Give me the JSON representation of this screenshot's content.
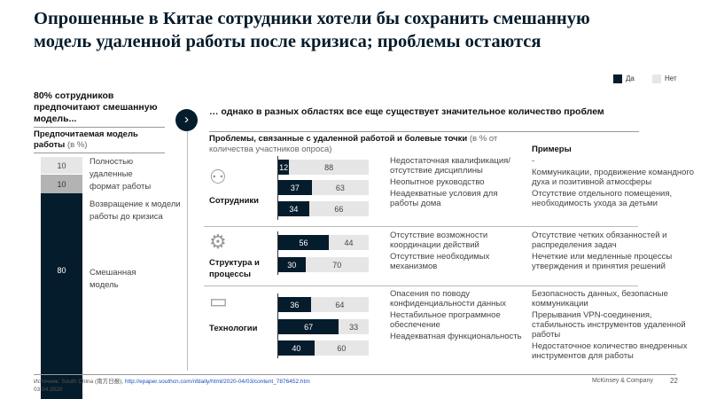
{
  "title": "Опрошенные в Китае сотрудники хотели бы сохранить смешанную модель удаленной работы после кризиса; проблемы остаются",
  "legend": {
    "yes": "Да",
    "no": "Нет",
    "yes_color": "#051c2c",
    "no_color": "#e6e6e6"
  },
  "left": {
    "headline": "80% сотрудников предпочитают смешанную модель...",
    "subtitle": "Предпочитаемая модель работы",
    "unit": "(в %)",
    "segments": [
      {
        "value": "10",
        "label": "Полностью удаленные формат работы"
      },
      {
        "value": "10",
        "label": "Возвращение к модели работы до кризиса"
      },
      {
        "value": "80",
        "label": "Смешанная модель"
      }
    ]
  },
  "right": {
    "headline": "… однако в разных областях все еще существует значительное количество проблем",
    "subtitle": "Проблемы, связанные с удаленной работой и болевые точки",
    "unit": "(в % от количества участников опроса)",
    "examples_header": "Примеры",
    "groups": [
      {
        "label": "Сотрудники",
        "icon": "people-icon",
        "bars": [
          [
            12,
            88
          ],
          [
            37,
            63
          ],
          [
            34,
            66
          ]
        ]
      },
      {
        "label": "Структура и процессы",
        "icon": "structure-gear-icon",
        "bars": [
          [
            56,
            44
          ],
          [
            30,
            70
          ]
        ]
      },
      {
        "label": "Технологии",
        "icon": "laptop-icon",
        "bars": [
          [
            36,
            64
          ],
          [
            67,
            33
          ],
          [
            40,
            60
          ]
        ]
      }
    ],
    "problems": [
      "Недостаточная квалификация/ отсутствие дисциплины",
      "Неопытное руководство",
      "Неадекватные условия для работы дома",
      "Отсутствие возможности координации действий",
      "Отсутствие необходимых механизмов",
      "Опасения по поводу конфиденциальности данных",
      "Нестабильное программное обеспечение",
      "Неадекватная функциональность"
    ],
    "examples": [
      "-",
      "Коммуникации, продвижение командного духа и позитивной атмосферы",
      "Отсутствие отдельного помещения, необходимость ухода за детьми",
      "Отсутствие четких обязанностей и распределения задач",
      "Нечеткие или медленные процессы утверждения и принятия решений",
      "Безопасность данных, безопасные коммуникации",
      "Прерывания VPN-соединения, стабильность инструментов удаленной работы",
      "Недостаточное количество внедренных инструментов для работы"
    ]
  },
  "footer": {
    "source_prefix": "Источник: South China (南方日报),",
    "source_link": "http://epaper.southcn.com/nfdaily/html/2020-04/03/content_7876452.htm",
    "date": "03.04.2020",
    "brand": "McKinsey & Company",
    "page": "22"
  }
}
